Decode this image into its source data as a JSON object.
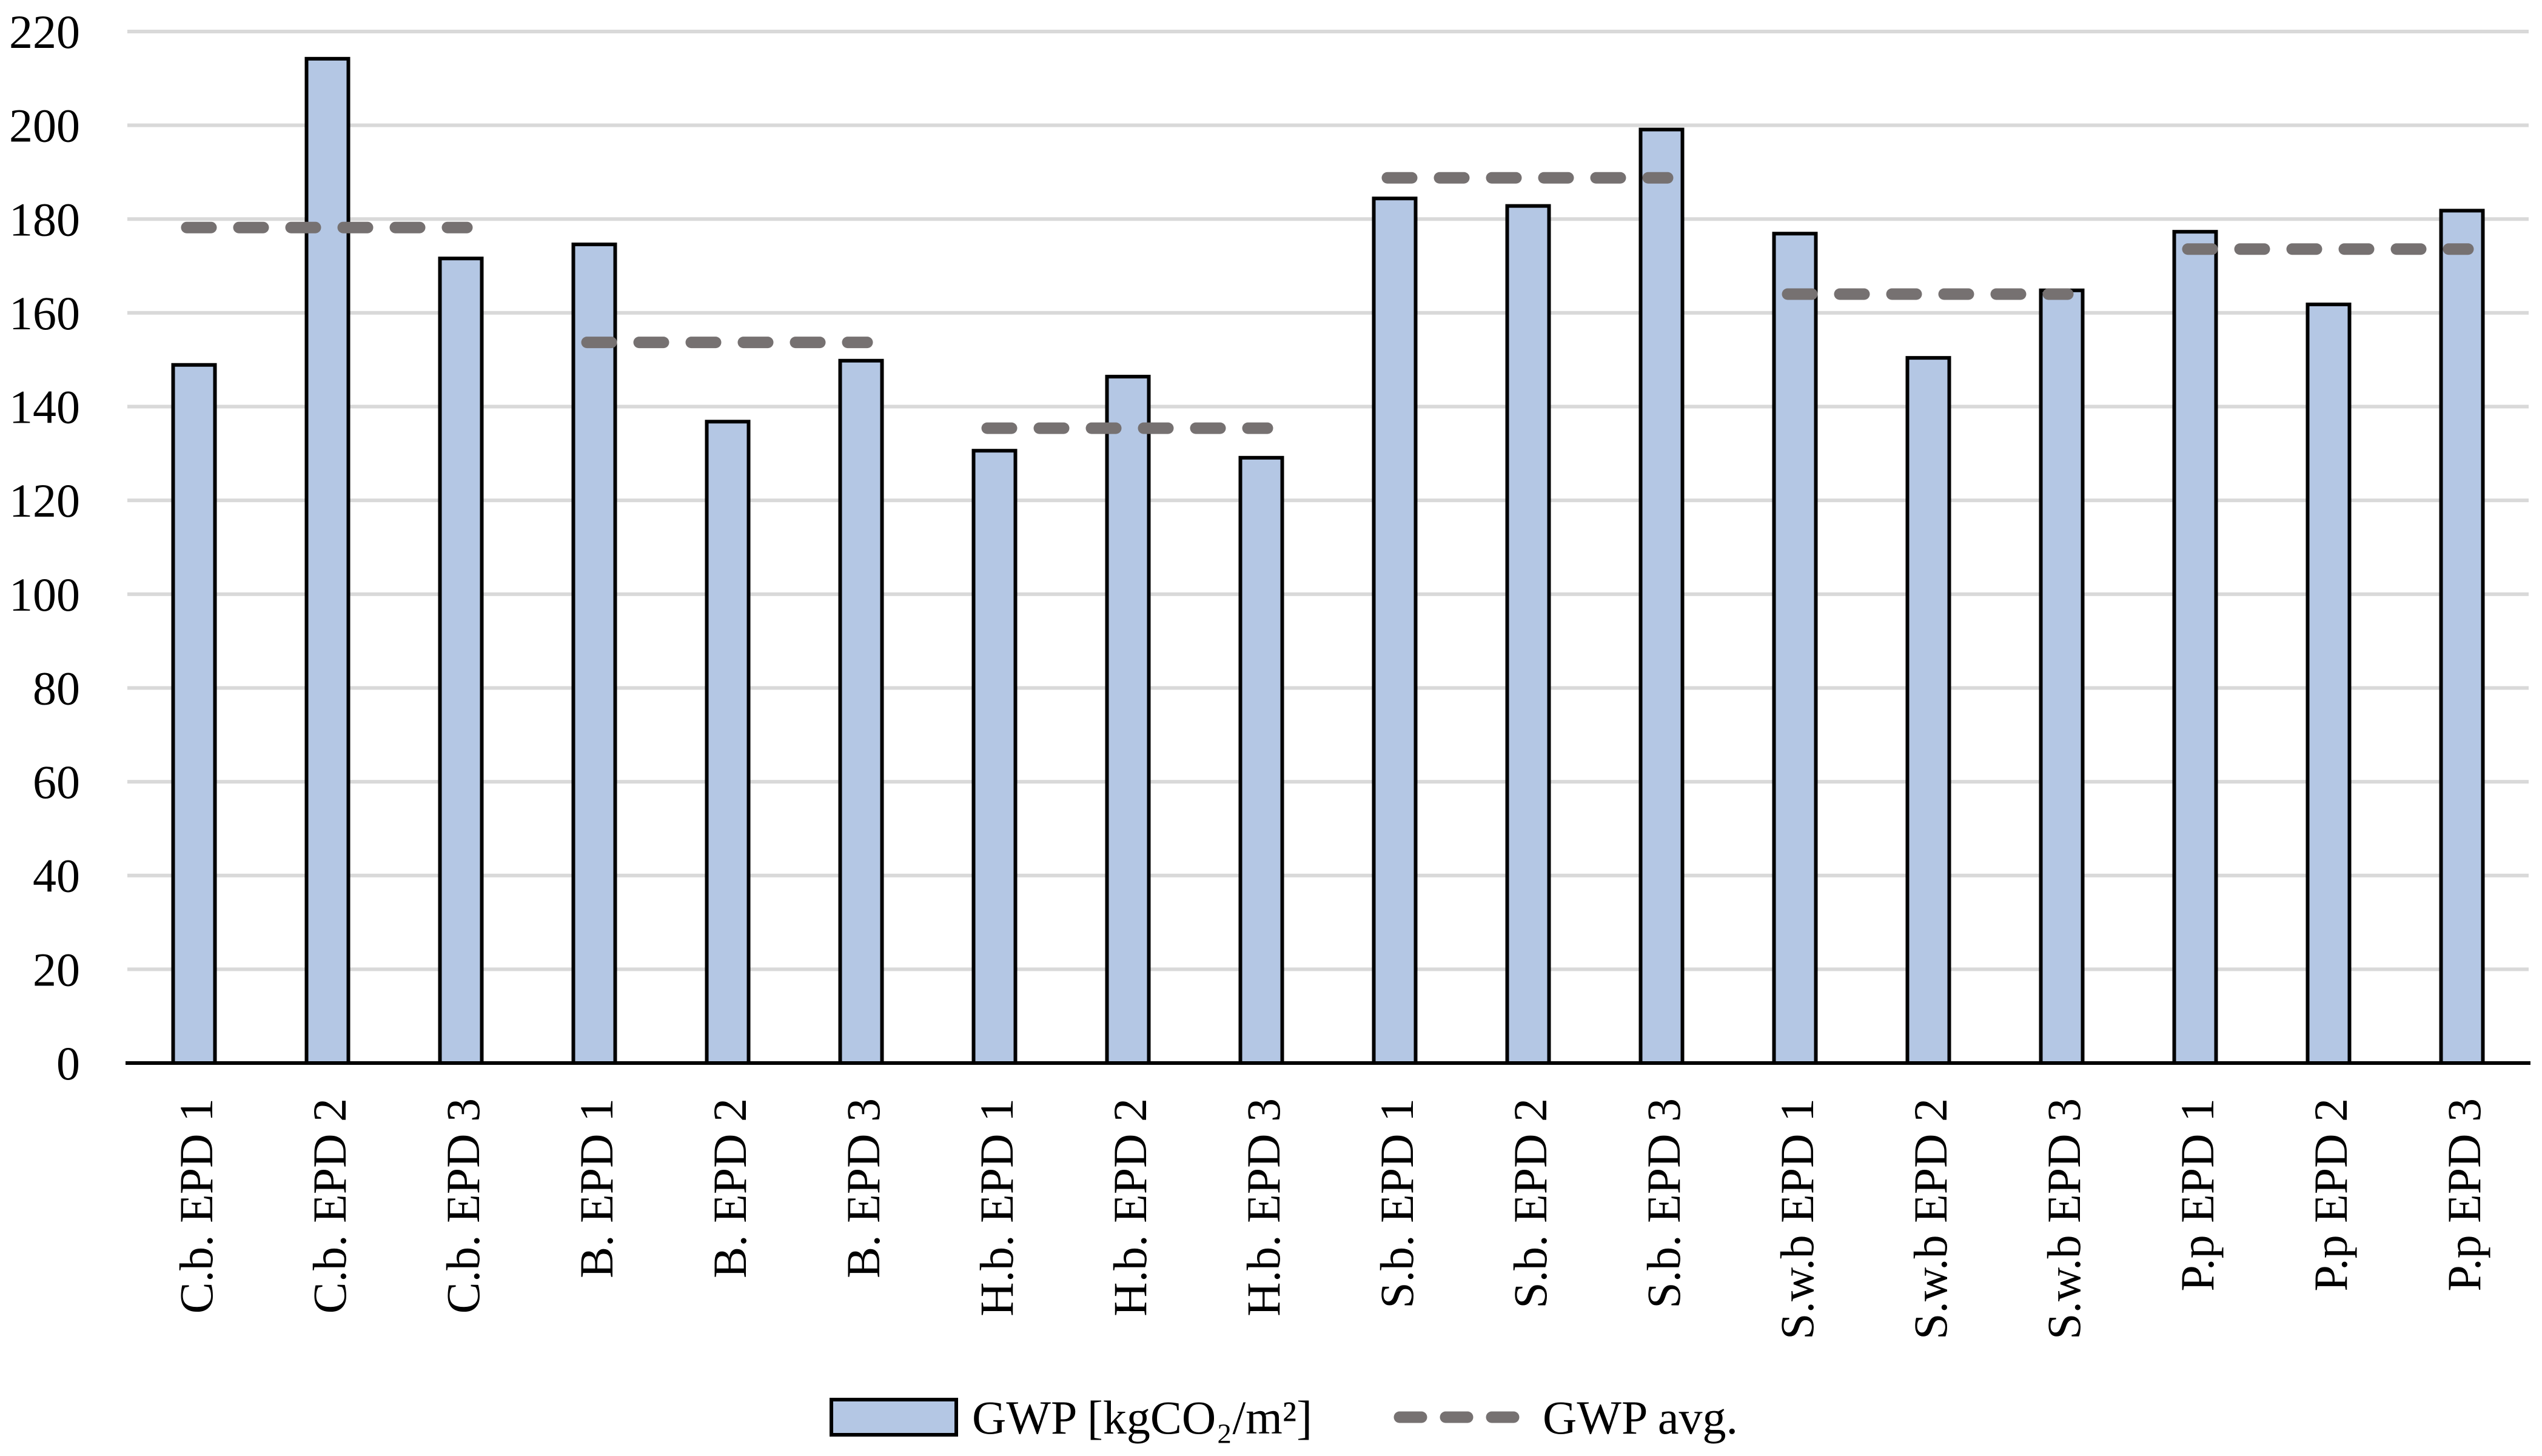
{
  "chart_data": {
    "type": "bar",
    "title": "",
    "xlabel": "",
    "ylabel": "",
    "ylim": [
      0,
      220
    ],
    "yticks": [
      0,
      20,
      40,
      60,
      80,
      100,
      120,
      140,
      160,
      180,
      200,
      220
    ],
    "grid": "horizontal",
    "legend_position": "bottom",
    "categories": [
      "C.b. EPD 1",
      "C.b. EPD 2",
      "C.b. EPD 3",
      "B. EPD 1",
      "B. EPD 2",
      "B. EPD 3",
      "H.b. EPD 1",
      "H.b. EPD 2",
      "H.b. EPD 3",
      "S.b. EPD 1",
      "S.b. EPD 2",
      "S.b. EPD 3",
      "S.w.b EPD 1",
      "S.w.b EPD 2",
      "S.w.b EPD 3",
      "P.p EPD 1",
      "P.p EPD 2",
      "P.p EPD 3"
    ],
    "series": [
      {
        "name": "GWP [kgCO₂/m²]",
        "values": [
          148.9,
          214.2,
          171.6,
          174.6,
          136.8,
          149.8,
          130.6,
          146.4,
          129.1,
          184.4,
          182.8,
          199.1,
          176.9,
          150.4,
          164.8,
          177.3,
          161.8,
          181.8
        ]
      }
    ],
    "avg_series": {
      "name": "GWP avg.",
      "style": "dashed",
      "groups": [
        {
          "group": "C.b.",
          "start_index": 0,
          "end_index": 2,
          "value": 178.2
        },
        {
          "group": "B.",
          "start_index": 3,
          "end_index": 5,
          "value": 153.7
        },
        {
          "group": "H.b.",
          "start_index": 6,
          "end_index": 8,
          "value": 135.4
        },
        {
          "group": "S.b.",
          "start_index": 9,
          "end_index": 11,
          "value": 188.8
        },
        {
          "group": "S.w.b",
          "start_index": 12,
          "end_index": 14,
          "value": 164.0
        },
        {
          "group": "P.p",
          "start_index": 15,
          "end_index": 17,
          "value": 173.6
        }
      ]
    }
  },
  "legend": {
    "bar_label": "GWP [kgCO₂/m²]",
    "avg_label": "GWP avg."
  },
  "colors": {
    "background": "#FFFFFF",
    "bar_fill": "#B4C7E4",
    "bar_border": "#000000",
    "avg_dash": "#767171",
    "gridline": "#D9D9D9",
    "axis": "#000000",
    "text": "#000000"
  }
}
